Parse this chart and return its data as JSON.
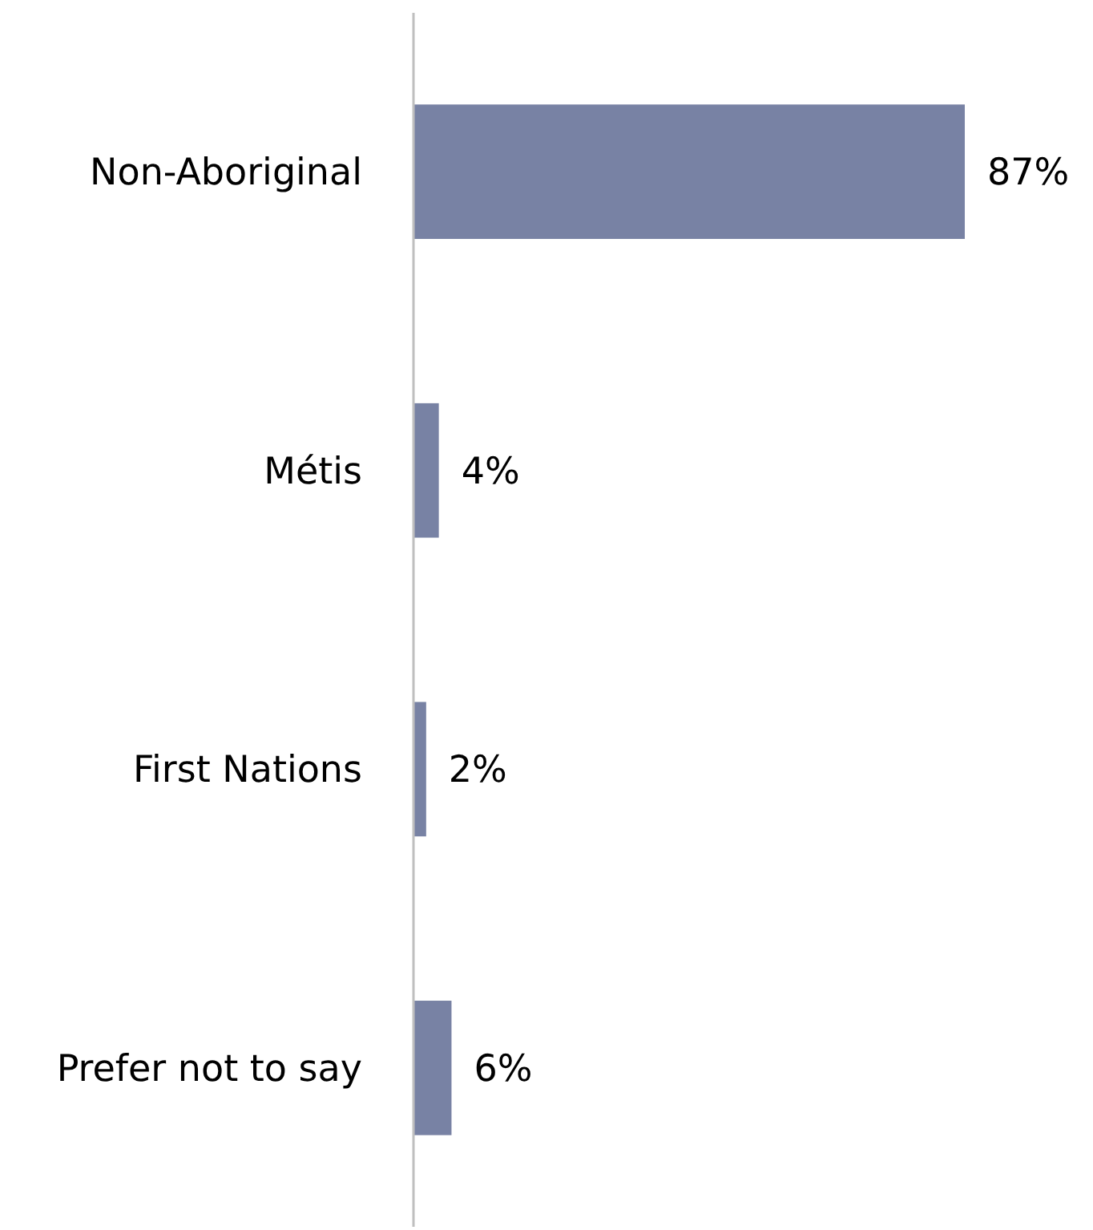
{
  "chart_data": {
    "type": "bar",
    "orientation": "horizontal",
    "categories": [
      "Non-Aboriginal",
      "Métis",
      "First Nations",
      "Prefer not to say"
    ],
    "values": [
      87,
      4,
      2,
      6
    ],
    "value_labels": [
      "87%",
      "4%",
      "2%",
      "6%"
    ],
    "color": "#7882a4",
    "tick_labels": "y"
  }
}
